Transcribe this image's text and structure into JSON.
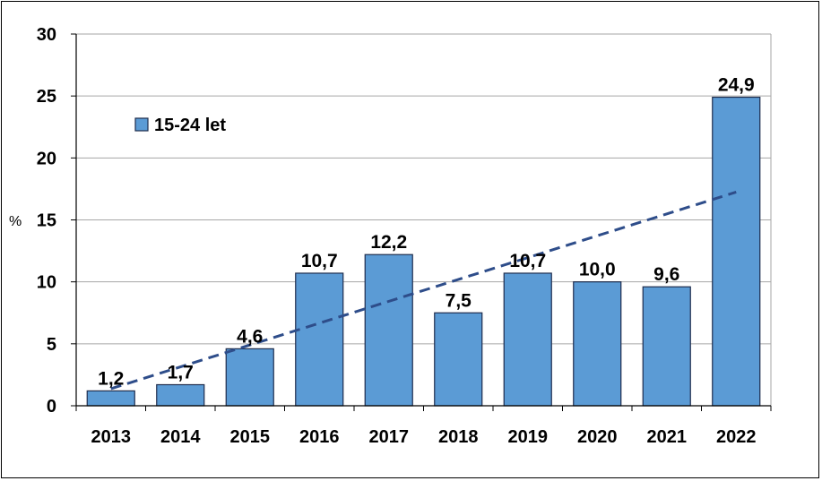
{
  "chart_data": {
    "type": "bar",
    "title": "",
    "xlabel": "",
    "ylabel": "%",
    "ylim": [
      0,
      30
    ],
    "yticks": [
      "0",
      "5",
      "10",
      "15",
      "20",
      "25",
      "30"
    ],
    "grid": "horizontal",
    "legend_position": "top-left",
    "categories": [
      "2013",
      "2014",
      "2015",
      "2016",
      "2017",
      "2018",
      "2019",
      "2020",
      "2021",
      "2022"
    ],
    "series": [
      {
        "name": "15-24 let",
        "values": [
          1.2,
          1.7,
          4.6,
          10.7,
          12.2,
          7.5,
          10.7,
          10.0,
          9.6,
          24.9
        ],
        "labels": [
          "1,2",
          "1,7",
          "4,6",
          "10,7",
          "12,2",
          "7,5",
          "10,7",
          "10,0",
          "9,6",
          "24,9"
        ],
        "color": "#5b9bd5"
      }
    ],
    "trendline": {
      "type": "linear",
      "style": "dashed",
      "color": "#2e4d8a"
    }
  }
}
